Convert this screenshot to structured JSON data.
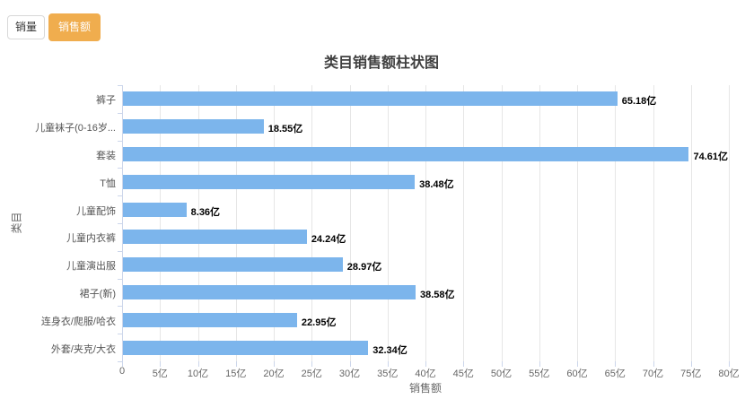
{
  "toolbar": {
    "volume_button_label": "销量",
    "revenue_button_label": "销售额",
    "active_color": "#f0ad4e"
  },
  "chart_data": {
    "type": "bar",
    "orientation": "horizontal",
    "title": "类目销售额柱状图",
    "xlabel": "销售额",
    "ylabel": "类目",
    "unit": "亿",
    "categories": [
      "裤子",
      "儿童袜子(0-16岁...",
      "套装",
      "T恤",
      "儿童配饰",
      "儿童内衣裤",
      "儿童演出服",
      "裙子(新)",
      "连身衣/爬服/哈衣",
      "外套/夹克/大衣"
    ],
    "values": [
      65.18,
      18.55,
      74.61,
      38.48,
      8.36,
      24.24,
      28.97,
      38.58,
      22.95,
      32.34
    ],
    "value_labels": [
      "65.18亿",
      "18.55亿",
      "74.61亿",
      "38.48亿",
      "8.36亿",
      "24.24亿",
      "28.97亿",
      "38.58亿",
      "22.95亿",
      "32.34亿"
    ],
    "xlim": [
      0,
      80
    ],
    "x_tick_step": 5,
    "x_tick_labels": [
      "0",
      "5亿",
      "10亿",
      "15亿",
      "20亿",
      "25亿",
      "30亿",
      "35亿",
      "40亿",
      "45亿",
      "50亿",
      "55亿",
      "60亿",
      "65亿",
      "70亿",
      "75亿",
      "80亿"
    ],
    "grid": true,
    "legend": "none",
    "bar_color": "#7cb5ec",
    "grid_color": "#e6e6e6",
    "axis_line_color": "#ccd6eb",
    "label_color": "#666666"
  }
}
